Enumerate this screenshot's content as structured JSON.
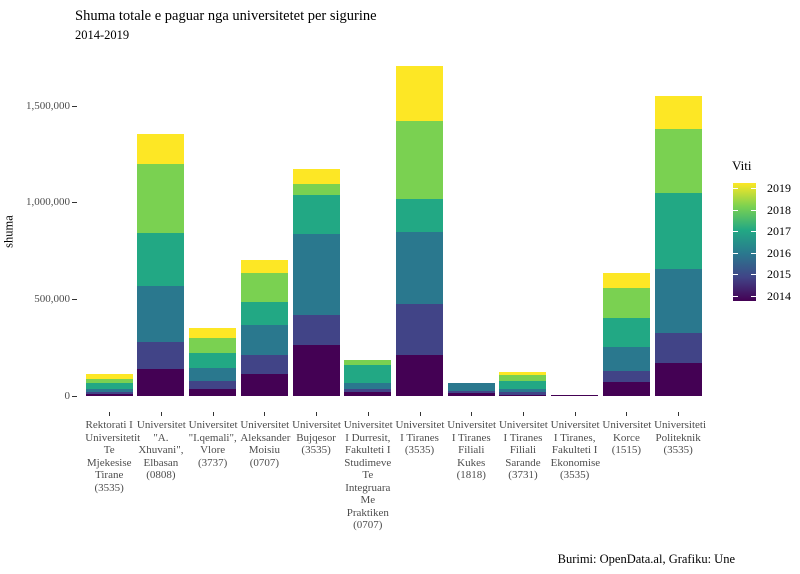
{
  "caption": "Burimi: OpenData.al, Grafiku: Une",
  "axes": {
    "y_label": "shuma",
    "y_ticks": [
      {
        "label": "0",
        "value": 0
      },
      {
        "label": "500,000",
        "value": 500000
      },
      {
        "label": "1,000,000",
        "value": 1000000
      },
      {
        "label": "1,500,000",
        "value": 1500000
      }
    ]
  },
  "legend": {
    "title": "Viti",
    "entries": [
      {
        "label": "2019",
        "color": "#fde725"
      },
      {
        "label": "2018",
        "color": "#7ad151"
      },
      {
        "label": "2017",
        "color": "#22a884"
      },
      {
        "label": "2016",
        "color": "#2a788e"
      },
      {
        "label": "2015",
        "color": "#414487"
      },
      {
        "label": "2014",
        "color": "#440154"
      }
    ]
  },
  "chart_data": {
    "type": "bar",
    "stacked": true,
    "title": "Shuma totale e paguar nga universitetet per sigurine",
    "subtitle": "2014-2019",
    "xlabel": "",
    "ylabel": "shuma",
    "ylim": [
      0,
      1790000
    ],
    "grid": false,
    "legend_position": "right",
    "legend_title": "Viti",
    "categories": [
      "Rektorati I Universitetit Te Mjekesise Tirane (3535)",
      "Universitet \"A. Xhuvani\", Elbasan (0808)",
      "Universitet \"I.qemali\", Vlore (3737)",
      "Universitet Aleksander Moisiu (0707)",
      "Universitet Bujqesor (3535)",
      "Universitet I Durresit, Fakulteti I Studimeve Te Integruara Me Praktiken (0707)",
      "Universitet I Tiranes (3535)",
      "Universitet I Tiranes Filiali Kukes (1818)",
      "Universitet I Tiranes Filiali Sarande (3731)",
      "Universitet I Tiranes, Fakulteti I Ekonomise (3535)",
      "Universitet Korce (1515)",
      "Universiteti Politeknik (3535)"
    ],
    "series": [
      {
        "name": "2014",
        "color": "#440154",
        "values": [
          10000,
          137000,
          35000,
          113000,
          261000,
          19000,
          210000,
          13000,
          7000,
          3000,
          74000,
          173000
        ]
      },
      {
        "name": "2015",
        "color": "#414487",
        "values": [
          11000,
          143000,
          40000,
          101000,
          157000,
          18000,
          263000,
          13000,
          13000,
          0,
          53000,
          152000
        ]
      },
      {
        "name": "2016",
        "color": "#2a788e",
        "values": [
          14000,
          288000,
          69000,
          152000,
          420000,
          29000,
          372000,
          40000,
          17000,
          0,
          126000,
          332000
        ]
      },
      {
        "name": "2017",
        "color": "#22a884",
        "values": [
          31000,
          272000,
          78000,
          121000,
          201000,
          96000,
          173000,
          0,
          42000,
          0,
          152000,
          391000
        ]
      },
      {
        "name": "2018",
        "color": "#7ad151",
        "values": [
          20000,
          356000,
          76000,
          146000,
          55000,
          25000,
          402000,
          0,
          29000,
          0,
          155000,
          333000
        ]
      },
      {
        "name": "2019",
        "color": "#fde725",
        "values": [
          28000,
          156000,
          52000,
          71000,
          76000,
          0,
          287000,
          0,
          16000,
          0,
          74000,
          170000
        ]
      }
    ]
  }
}
